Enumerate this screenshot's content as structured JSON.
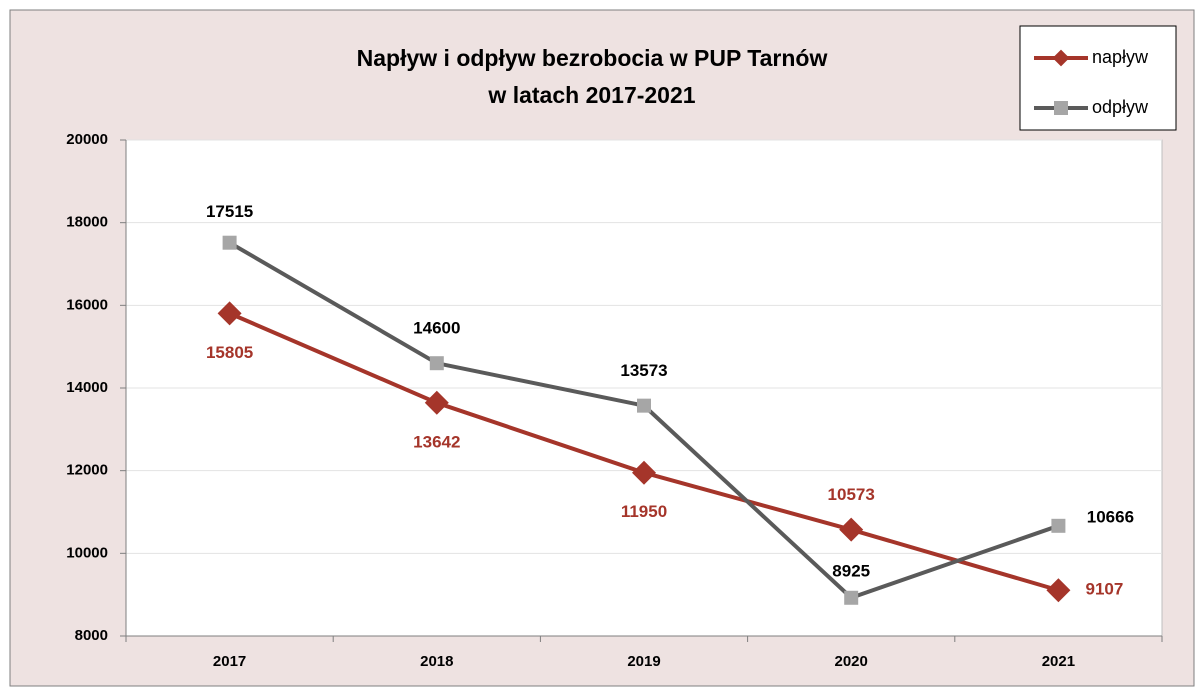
{
  "chart_data": {
    "type": "line",
    "title": [
      "Napływ i odpływ bezrobocia w PUP Tarnów",
      "w latach 2017-2021"
    ],
    "categories": [
      "2017",
      "2018",
      "2019",
      "2020",
      "2021"
    ],
    "series": [
      {
        "name": "napływ",
        "color": "#a5352a",
        "marker": "diamond",
        "marker_color": "#a5352a",
        "label_color": "#a5352a",
        "values": [
          15805,
          13642,
          11950,
          10573,
          9107
        ]
      },
      {
        "name": "odpływ",
        "color": "#5a5a5a",
        "marker": "square",
        "marker_color": "#a6a6a6",
        "label_color": "#000000",
        "values": [
          17515,
          14600,
          13573,
          8925,
          10666
        ]
      }
    ],
    "ylim": [
      8000,
      20000
    ],
    "yticks": [
      8000,
      10000,
      12000,
      14000,
      16000,
      18000,
      20000
    ],
    "grid": true
  }
}
